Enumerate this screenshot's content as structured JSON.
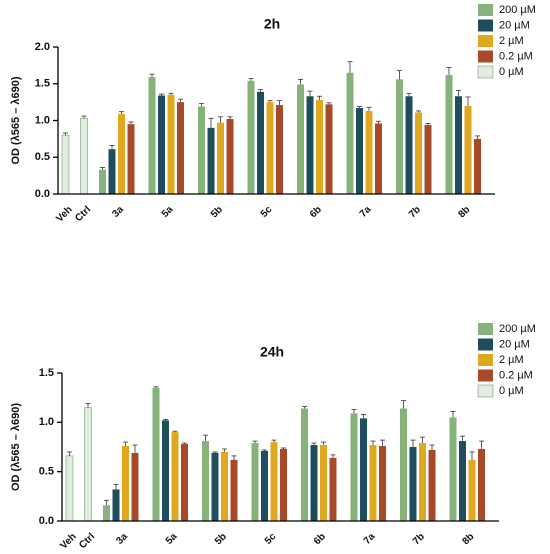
{
  "chart_data": [
    {
      "type": "bar",
      "title": "2h",
      "y_label": "OD (λ565 – λ690)",
      "categories": [
        "Veh",
        "Ctrl",
        "3a",
        "5a",
        "5b",
        "5c",
        "6b",
        "7a",
        "7b",
        "8b"
      ],
      "ylim": [
        0,
        2.0
      ],
      "yticks": [
        {
          "value": 0,
          "label": "0.0"
        },
        {
          "value": 0.5,
          "label": "0.5"
        },
        {
          "value": 1.0,
          "label": "1.0"
        },
        {
          "value": 1.5,
          "label": "1.5"
        },
        {
          "value": 2.0,
          "label": "2.0"
        }
      ],
      "series": [
        {
          "name": "200 µM",
          "color": "#86b37a",
          "values": [
            null,
            null,
            0.33,
            1.59,
            1.19,
            1.54,
            1.49,
            1.65,
            1.56,
            1.62
          ],
          "errors": [
            null,
            null,
            0.03,
            0.04,
            0.04,
            0.03,
            0.07,
            0.15,
            0.12,
            0.1
          ]
        },
        {
          "name": "20 µM",
          "color": "#1e4d5c",
          "values": [
            null,
            null,
            0.61,
            1.34,
            0.9,
            1.39,
            1.33,
            1.17,
            1.33,
            1.33
          ],
          "errors": [
            null,
            null,
            0.05,
            0.02,
            0.13,
            0.03,
            0.07,
            0.02,
            0.04,
            0.08
          ]
        },
        {
          "name": "2 µM",
          "color": "#e0a820",
          "values": [
            null,
            null,
            1.09,
            1.35,
            0.97,
            1.25,
            1.28,
            1.13,
            1.11,
            1.2
          ],
          "errors": [
            null,
            null,
            0.03,
            0.02,
            0.08,
            0.02,
            0.05,
            0.05,
            0.02,
            0.12
          ]
        },
        {
          "name": "0.2 µM",
          "color": "#a84a2a",
          "values": [
            null,
            null,
            0.95,
            1.25,
            1.02,
            1.21,
            1.22,
            0.96,
            0.94,
            0.75
          ],
          "errors": [
            null,
            null,
            0.03,
            0.04,
            0.03,
            0.06,
            0.02,
            0.03,
            0.02,
            0.04
          ]
        },
        {
          "name": "0 µM",
          "color": "#dfeedd",
          "values": [
            0.8,
            1.03,
            null,
            null,
            null,
            null,
            null,
            null,
            null,
            null
          ],
          "errors": [
            0.03,
            0.03,
            null,
            null,
            null,
            null,
            null,
            null,
            null,
            null
          ]
        }
      ]
    },
    {
      "type": "bar",
      "title": "24h",
      "y_label": "OD (λ565 – λ690)",
      "categories": [
        "Veh",
        "Ctrl",
        "3a",
        "5a",
        "5b",
        "5c",
        "6b",
        "7a",
        "7b",
        "8b"
      ],
      "ylim": [
        0,
        1.5
      ],
      "yticks": [
        {
          "value": 0,
          "label": "0.0"
        },
        {
          "value": 0.5,
          "label": "0.5"
        },
        {
          "value": 1.0,
          "label": "1.0"
        },
        {
          "value": 1.5,
          "label": "1.5"
        }
      ],
      "series": [
        {
          "name": "200 µM",
          "color": "#86b37a",
          "values": [
            null,
            null,
            0.16,
            1.35,
            0.81,
            0.79,
            1.14,
            1.09,
            1.14,
            1.05
          ],
          "errors": [
            null,
            null,
            0.05,
            0.01,
            0.06,
            0.02,
            0.02,
            0.04,
            0.08,
            0.06
          ]
        },
        {
          "name": "20 µM",
          "color": "#1e4d5c",
          "values": [
            null,
            null,
            0.32,
            1.02,
            0.69,
            0.71,
            0.77,
            1.04,
            0.75,
            0.81
          ],
          "errors": [
            null,
            null,
            0.05,
            0.01,
            0.01,
            0.01,
            0.02,
            0.04,
            0.07,
            0.05
          ]
        },
        {
          "name": "2 µM",
          "color": "#e0a820",
          "values": [
            null,
            null,
            0.76,
            0.9,
            0.7,
            0.8,
            0.77,
            0.77,
            0.79,
            0.62
          ],
          "errors": [
            null,
            null,
            0.04,
            0.01,
            0.03,
            0.02,
            0.03,
            0.04,
            0.06,
            0.08
          ]
        },
        {
          "name": "0.2 µM",
          "color": "#a84a2a",
          "values": [
            null,
            null,
            0.69,
            0.78,
            0.62,
            0.73,
            0.64,
            0.76,
            0.72,
            0.73
          ],
          "errors": [
            null,
            null,
            0.08,
            0.01,
            0.04,
            0.01,
            0.03,
            0.06,
            0.05,
            0.08
          ]
        },
        {
          "name": "0 µM",
          "color": "#dfeedd",
          "values": [
            0.66,
            1.15,
            null,
            null,
            null,
            null,
            null,
            null,
            null,
            null
          ],
          "errors": [
            0.04,
            0.04,
            null,
            null,
            null,
            null,
            null,
            null,
            null,
            null
          ]
        }
      ]
    }
  ]
}
